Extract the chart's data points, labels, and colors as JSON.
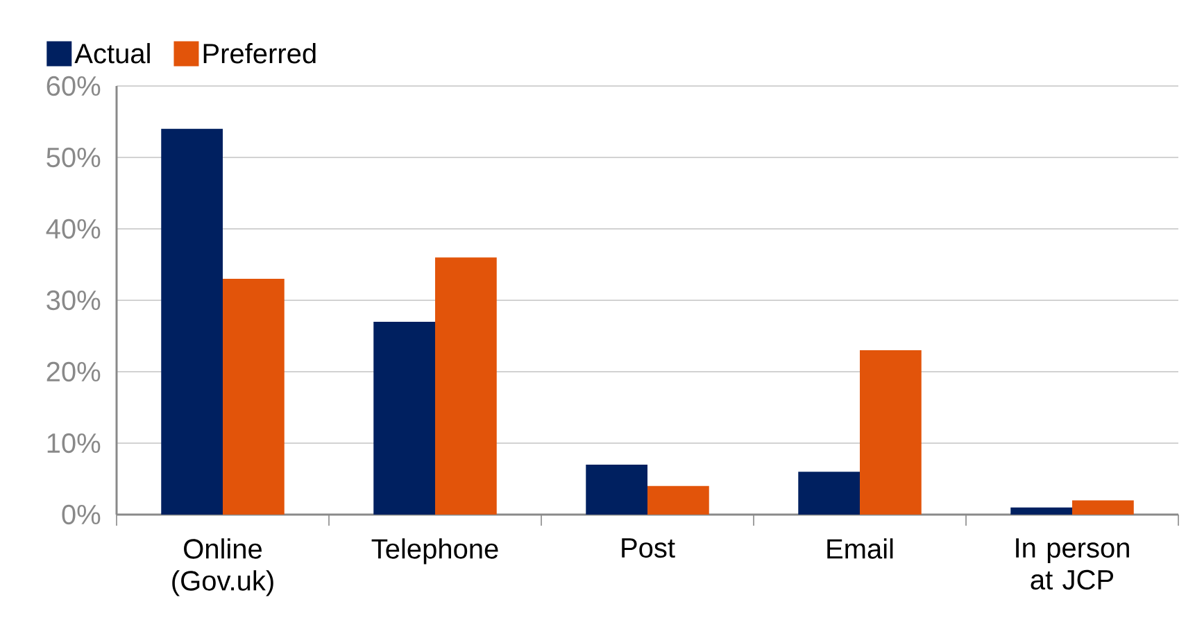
{
  "chart_data": {
    "type": "bar",
    "categories": [
      "Online (Gov.uk)",
      "Telephone",
      "Post",
      "Email",
      "In person at JCP"
    ],
    "series": [
      {
        "name": "Actual",
        "color": "#002060",
        "values": [
          54,
          27,
          7,
          6,
          1
        ]
      },
      {
        "name": "Preferred",
        "color": "#e2540a",
        "values": [
          33,
          36,
          4,
          23,
          2
        ]
      }
    ],
    "ylim": [
      0,
      60
    ],
    "yticks": [
      {
        "value": 0,
        "label": "0%"
      },
      {
        "value": 10,
        "label": "10%"
      },
      {
        "value": 20,
        "label": "20%"
      },
      {
        "value": 30,
        "label": "30%"
      },
      {
        "value": 40,
        "label": "40%"
      },
      {
        "value": 50,
        "label": "50%"
      },
      {
        "value": 60,
        "label": "60%"
      }
    ],
    "grid": "y",
    "legend": "top left"
  }
}
